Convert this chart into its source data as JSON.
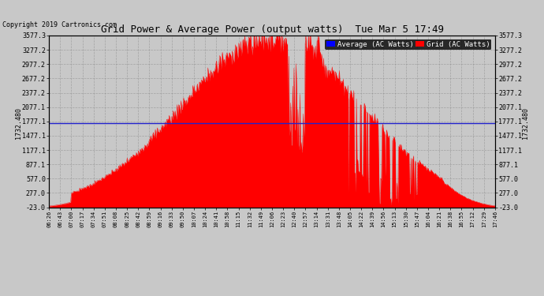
{
  "title": "Grid Power & Average Power (output watts)  Tue Mar 5 17:49",
  "copyright": "Copyright 2019 Cartronics.com",
  "background_color": "#c8c8c8",
  "plot_bg_color": "#c8c8c8",
  "avg_value": 1732.48,
  "avg_label": "1732.480",
  "ylim_min": -23.0,
  "ylim_max": 3577.3,
  "yticks": [
    -23.0,
    277.0,
    577.0,
    877.1,
    1177.1,
    1477.1,
    1777.1,
    2077.1,
    2377.2,
    2677.2,
    2977.2,
    3277.2,
    3577.3
  ],
  "ytick_labels": [
    "-23.0",
    "277.0",
    "577.0",
    "877.1",
    "1177.1",
    "1477.1",
    "1777.1",
    "2077.1",
    "2377.2",
    "2677.2",
    "2977.2",
    "3277.2",
    "3577.3"
  ],
  "fill_color": "#ff0000",
  "line_color": "#ff0000",
  "avg_line_color": "#2222cc",
  "grid_color": "#888888",
  "legend_avg_bg": "#0000ff",
  "legend_grid_bg": "#ff0000",
  "legend_text_color": "#ffffff",
  "xtick_labels": [
    "06:26",
    "06:43",
    "07:00",
    "07:17",
    "07:34",
    "07:51",
    "08:08",
    "08:25",
    "08:42",
    "08:59",
    "09:16",
    "09:33",
    "09:50",
    "10:07",
    "10:24",
    "10:41",
    "10:58",
    "11:15",
    "11:32",
    "11:49",
    "12:06",
    "12:23",
    "12:40",
    "12:57",
    "13:14",
    "13:31",
    "13:48",
    "14:05",
    "14:22",
    "14:39",
    "14:56",
    "15:13",
    "15:30",
    "15:47",
    "16:04",
    "16:21",
    "16:38",
    "16:55",
    "17:12",
    "17:29",
    "17:46"
  ],
  "num_points": 680
}
